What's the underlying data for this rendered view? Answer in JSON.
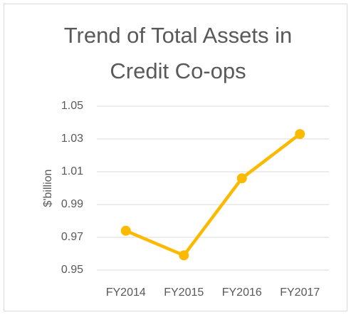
{
  "chart_data": {
    "type": "line",
    "title": "Trend of Total Assets in Credit Co-ops",
    "y_label": "$'billion",
    "categories": [
      "FY2014",
      "FY2015",
      "FY2016",
      "FY2017"
    ],
    "series": [
      {
        "color": "#fbb900",
        "values": [
          0.974,
          0.959,
          1.006,
          1.033
        ]
      }
    ],
    "ylim": [
      0.95,
      1.05
    ],
    "yticks": [
      0.95,
      0.97,
      0.99,
      1.01,
      1.03,
      1.05
    ],
    "grid": true
  }
}
